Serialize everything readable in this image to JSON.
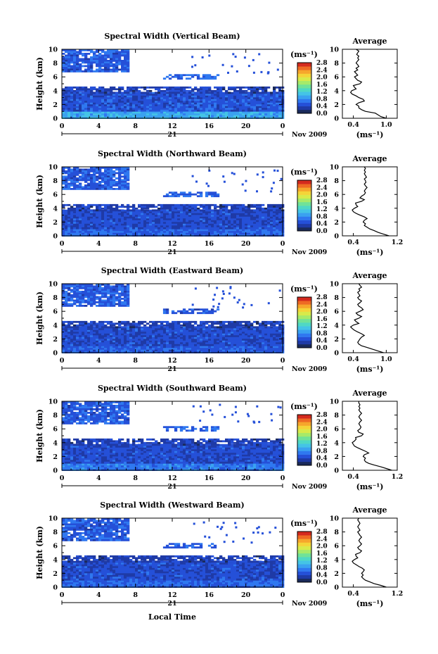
{
  "figure": {
    "xlabel": "Local Time",
    "date_label": "21",
    "month_label": "Nov 2009",
    "colorbar_unit": "(ms⁻¹)",
    "avg_xlabel": "(ms⁻¹)",
    "avg_title": "Average"
  },
  "chart_data": [
    {
      "type": "heatmap",
      "title": "Spectral Width (Vertical Beam)",
      "ylabel": "Height (km)",
      "xlim": [
        0,
        24
      ],
      "ylim": [
        0,
        10
      ],
      "xticks": [
        "0",
        "4",
        "8",
        "12",
        "16",
        "20",
        "0"
      ],
      "yticks": [
        "0",
        "2",
        "4",
        "6",
        "8",
        "10"
      ],
      "colorbar": {
        "ticks": [
          "0.0",
          "0.4",
          "0.8",
          "1.2",
          "1.6",
          "2.0",
          "2.4",
          "2.8"
        ],
        "range": [
          0,
          2.8
        ]
      },
      "layers": [
        {
          "h0": 0.1,
          "h1": 1.2,
          "t0": 0,
          "t1": 24,
          "value": 0.95
        },
        {
          "h0": 1.2,
          "h1": 3.8,
          "t0": 0,
          "t1": 24,
          "value": 0.5
        },
        {
          "h0": 3.8,
          "h1": 4.6,
          "t0": 0,
          "t1": 24,
          "value": 0.35
        },
        {
          "h0": 5.8,
          "h1": 6.4,
          "t0": 11,
          "t1": 17,
          "value": 0.6
        },
        {
          "h0": 6.8,
          "h1": 10,
          "t0": 0,
          "t1": 7.3,
          "value": 0.55
        }
      ],
      "profile": {
        "xticks": [
          "0.4",
          "1.0"
        ],
        "xlim": [
          0.2,
          1.2
        ],
        "values": [
          1.0,
          0.9,
          0.85,
          0.8,
          0.62,
          0.55,
          0.5,
          0.5,
          0.45,
          0.5,
          0.6,
          0.58,
          0.5,
          0.45,
          0.38,
          0.35,
          0.37,
          0.45,
          0.42,
          0.4,
          0.52,
          0.55,
          0.48,
          0.45,
          0.42,
          0.48,
          0.45,
          0.42,
          0.48,
          0.45,
          0.5,
          0.48,
          0.45,
          0.47,
          0.5,
          0.48,
          0.5,
          0.46,
          0.48,
          0.5,
          0.45
        ]
      }
    },
    {
      "type": "heatmap",
      "title": "Spectral Width (Northward Beam)",
      "ylabel": "Height (km)",
      "xlim": [
        0,
        24
      ],
      "ylim": [
        0,
        10
      ],
      "xticks": [
        "0",
        "4",
        "8",
        "12",
        "16",
        "20",
        "0"
      ],
      "yticks": [
        "0",
        "2",
        "4",
        "6",
        "8",
        "10"
      ],
      "colorbar": {
        "ticks": [
          "0.0",
          "0.4",
          "0.8",
          "1.2",
          "1.6",
          "2.0",
          "2.4",
          "2.8"
        ],
        "range": [
          0,
          2.8
        ]
      },
      "layers": [
        {
          "h0": 0.1,
          "h1": 1.2,
          "t0": 0,
          "t1": 24,
          "value": 0.6
        },
        {
          "h0": 1.2,
          "h1": 3.8,
          "t0": 0,
          "t1": 24,
          "value": 0.45
        },
        {
          "h0": 3.8,
          "h1": 4.6,
          "t0": 0,
          "t1": 24,
          "value": 0.35
        },
        {
          "h0": 5.8,
          "h1": 6.4,
          "t0": 11,
          "t1": 17,
          "value": 0.6
        },
        {
          "h0": 6.8,
          "h1": 10,
          "t0": 0,
          "t1": 7.3,
          "value": 0.55
        }
      ],
      "profile": {
        "xticks": [
          "0.4",
          "1.2"
        ],
        "xlim": [
          0.2,
          1.2
        ],
        "values": [
          1.05,
          0.95,
          0.85,
          0.78,
          0.7,
          0.65,
          0.6,
          0.62,
          0.58,
          0.6,
          0.65,
          0.6,
          0.52,
          0.45,
          0.4,
          0.38,
          0.42,
          0.48,
          0.45,
          0.44,
          0.55,
          0.6,
          0.52,
          0.55,
          0.6,
          0.62,
          0.6,
          0.62,
          0.65,
          0.62,
          0.6,
          0.63,
          0.62,
          0.6,
          0.64,
          0.62,
          0.6,
          0.62,
          0.6,
          0.62,
          0.6
        ]
      }
    },
    {
      "type": "heatmap",
      "title": "Spectral Width (Eastward Beam)",
      "ylabel": "Height (km)",
      "xlim": [
        0,
        24
      ],
      "ylim": [
        0,
        10
      ],
      "xticks": [
        "0",
        "4",
        "8",
        "12",
        "16",
        "20",
        "0"
      ],
      "yticks": [
        "0",
        "2",
        "4",
        "6",
        "8",
        "10"
      ],
      "colorbar": {
        "ticks": [
          "0.0",
          "0.4",
          "0.8",
          "1.2",
          "1.6",
          "2.0",
          "2.4",
          "2.8"
        ],
        "range": [
          0,
          2.8
        ]
      },
      "layers": [
        {
          "h0": 0.1,
          "h1": 1.2,
          "t0": 0,
          "t1": 24,
          "value": 0.55
        },
        {
          "h0": 1.2,
          "h1": 3.8,
          "t0": 0,
          "t1": 24,
          "value": 0.45
        },
        {
          "h0": 3.8,
          "h1": 4.6,
          "t0": 0,
          "t1": 24,
          "value": 0.35
        },
        {
          "h0": 5.8,
          "h1": 6.4,
          "t0": 11,
          "t1": 17,
          "value": 0.55
        },
        {
          "h0": 6.8,
          "h1": 10,
          "t0": 0,
          "t1": 7.3,
          "value": 0.55
        }
      ],
      "profile": {
        "xticks": [
          "0.4",
          "1.0"
        ],
        "xlim": [
          0.2,
          1.2
        ],
        "values": [
          0.95,
          0.85,
          0.75,
          0.65,
          0.55,
          0.5,
          0.48,
          0.5,
          0.52,
          0.55,
          0.6,
          0.55,
          0.48,
          0.42,
          0.38,
          0.35,
          0.4,
          0.5,
          0.45,
          0.42,
          0.5,
          0.55,
          0.48,
          0.45,
          0.52,
          0.58,
          0.55,
          0.5,
          0.48,
          0.52,
          0.55,
          0.5,
          0.48,
          0.52,
          0.5,
          0.48,
          0.52,
          0.5,
          0.55,
          0.52,
          0.5
        ]
      }
    },
    {
      "type": "heatmap",
      "title": "Spectral Width (Southward Beam)",
      "ylabel": "Height (km)",
      "xlim": [
        0,
        24
      ],
      "ylim": [
        0,
        10
      ],
      "xticks": [
        "0",
        "4",
        "8",
        "12",
        "16",
        "20",
        "0"
      ],
      "yticks": [
        "0",
        "2",
        "4",
        "6",
        "8",
        "10"
      ],
      "colorbar": {
        "ticks": [
          "0.0",
          "0.4",
          "0.8",
          "1.2",
          "1.6",
          "2.0",
          "2.4",
          "2.8"
        ],
        "range": [
          0,
          2.8
        ]
      },
      "layers": [
        {
          "h0": 0.1,
          "h1": 1.2,
          "t0": 0,
          "t1": 24,
          "value": 0.7
        },
        {
          "h0": 1.2,
          "h1": 3.8,
          "t0": 0,
          "t1": 24,
          "value": 0.45
        },
        {
          "h0": 3.8,
          "h1": 4.6,
          "t0": 0,
          "t1": 24,
          "value": 0.35
        },
        {
          "h0": 5.8,
          "h1": 6.4,
          "t0": 11,
          "t1": 17,
          "value": 0.6
        },
        {
          "h0": 6.8,
          "h1": 10,
          "t0": 0,
          "t1": 7.3,
          "value": 0.55
        }
      ],
      "profile": {
        "xticks": [
          "0.4",
          "1.2"
        ],
        "xlim": [
          0.2,
          1.2
        ],
        "values": [
          1.1,
          1.0,
          0.9,
          0.78,
          0.68,
          0.62,
          0.6,
          0.62,
          0.58,
          0.6,
          0.68,
          0.62,
          0.55,
          0.48,
          0.42,
          0.4,
          0.38,
          0.42,
          0.45,
          0.44,
          0.55,
          0.58,
          0.5,
          0.48,
          0.52,
          0.54,
          0.52,
          0.5,
          0.52,
          0.55,
          0.52,
          0.5,
          0.52,
          0.55,
          0.52,
          0.5,
          0.52,
          0.5,
          0.52,
          0.5,
          0.5
        ]
      }
    },
    {
      "type": "heatmap",
      "title": "Spectral Width (Westward Beam)",
      "ylabel": "Height (km)",
      "xlim": [
        0,
        24
      ],
      "ylim": [
        0,
        10
      ],
      "xticks": [
        "0",
        "4",
        "8",
        "12",
        "16",
        "20",
        "0"
      ],
      "yticks": [
        "0",
        "2",
        "4",
        "6",
        "8",
        "10"
      ],
      "colorbar": {
        "ticks": [
          "0.0",
          "0.4",
          "0.8",
          "1.2",
          "1.6",
          "2.0",
          "2.4",
          "2.8"
        ],
        "range": [
          0,
          2.8
        ]
      },
      "layers": [
        {
          "h0": 0.1,
          "h1": 1.2,
          "t0": 0,
          "t1": 24,
          "value": 0.6
        },
        {
          "h0": 1.2,
          "h1": 3.8,
          "t0": 0,
          "t1": 24,
          "value": 0.45
        },
        {
          "h0": 3.8,
          "h1": 4.6,
          "t0": 0,
          "t1": 24,
          "value": 0.35
        },
        {
          "h0": 5.8,
          "h1": 6.4,
          "t0": 11,
          "t1": 17,
          "value": 0.55
        },
        {
          "h0": 6.8,
          "h1": 10,
          "t0": 0,
          "t1": 7.3,
          "value": 0.55
        }
      ],
      "profile": {
        "xticks": [
          "0.4",
          "1.2"
        ],
        "xlim": [
          0.2,
          1.2
        ],
        "values": [
          1.0,
          0.9,
          0.78,
          0.7,
          0.62,
          0.58,
          0.55,
          0.58,
          0.55,
          0.58,
          0.6,
          0.56,
          0.5,
          0.45,
          0.4,
          0.38,
          0.42,
          0.48,
          0.45,
          0.44,
          0.52,
          0.55,
          0.5,
          0.48,
          0.52,
          0.55,
          0.52,
          0.5,
          0.52,
          0.55,
          0.52,
          0.5,
          0.48,
          0.52,
          0.5,
          0.48,
          0.5,
          0.52,
          0.5,
          0.48,
          0.5
        ]
      }
    }
  ]
}
